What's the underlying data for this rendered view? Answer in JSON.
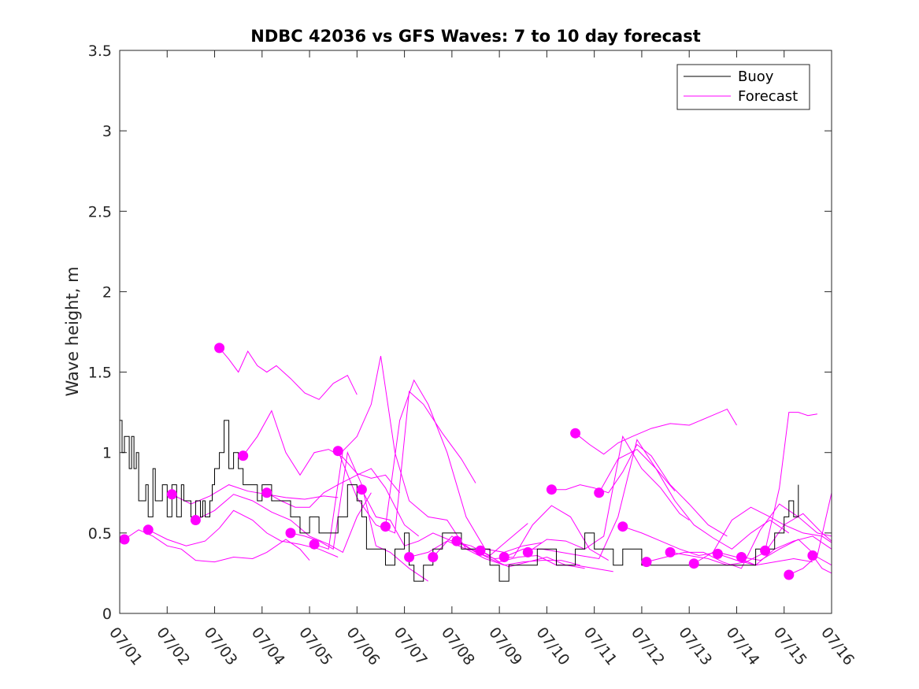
{
  "chart_data": {
    "type": "line",
    "title": "NDBC 42036 vs GFS Waves: 7 to 10 day forecast",
    "xlabel": "",
    "ylabel": "Wave height, m",
    "xlim": [
      1,
      16
    ],
    "ylim": [
      0,
      3.5
    ],
    "x_ticks": [
      1,
      2,
      3,
      4,
      5,
      6,
      7,
      8,
      9,
      10,
      11,
      12,
      13,
      14,
      15,
      16
    ],
    "x_tick_labels": [
      "07/01",
      "07/02",
      "07/03",
      "07/04",
      "07/05",
      "07/06",
      "07/07",
      "07/08",
      "07/09",
      "07/10",
      "07/11",
      "07/12",
      "07/13",
      "07/14",
      "07/15",
      "07/16"
    ],
    "y_ticks": [
      0,
      0.5,
      1,
      1.5,
      2,
      2.5,
      3,
      3.5
    ],
    "y_tick_labels": [
      "0",
      "0.5",
      "1",
      "1.5",
      "2",
      "2.5",
      "3",
      "3.5"
    ],
    "x_unit": "day of July",
    "grid": false,
    "legend_position": "top-right",
    "legend": [
      {
        "label": "Buoy",
        "color": "#000000"
      },
      {
        "label": "Forecast",
        "color": "#ff00ff"
      }
    ],
    "colors": {
      "buoy": "#000000",
      "forecast": "#ff00ff"
    },
    "series": [
      {
        "name": "Buoy",
        "kind": "observed",
        "x": [
          1.0,
          1.05,
          1.1,
          1.2,
          1.25,
          1.3,
          1.35,
          1.4,
          1.5,
          1.55,
          1.6,
          1.7,
          1.75,
          1.85,
          1.9,
          2.0,
          2.1,
          2.2,
          2.3,
          2.35,
          2.4,
          2.5,
          2.6,
          2.7,
          2.75,
          2.8,
          2.9,
          2.95,
          3.0,
          3.1,
          3.2,
          3.3,
          3.4,
          3.5,
          3.6,
          3.7,
          3.8,
          3.9,
          4.0,
          4.2,
          4.4,
          4.6,
          4.8,
          5.0,
          5.2,
          5.4,
          5.6,
          5.8,
          6.0,
          6.1,
          6.2,
          6.4,
          6.6,
          6.7,
          6.8,
          6.9,
          7.0,
          7.1,
          7.2,
          7.4,
          7.6,
          7.8,
          8.0,
          8.2,
          8.4,
          8.6,
          8.8,
          9.0,
          9.2,
          9.4,
          9.6,
          9.8,
          10.0,
          10.2,
          10.4,
          10.6,
          10.8,
          11.0,
          11.2,
          11.4,
          11.6,
          11.8,
          12.0,
          12.2,
          12.4,
          12.6,
          12.8,
          13.0,
          13.2,
          13.4,
          13.6,
          13.8,
          14.0,
          14.2,
          14.4,
          14.6,
          14.8,
          15.0,
          15.1,
          15.2,
          15.3
        ],
        "values": [
          1.2,
          1.0,
          1.1,
          0.9,
          1.1,
          0.9,
          1.0,
          0.7,
          0.7,
          0.8,
          0.6,
          0.9,
          0.7,
          0.7,
          0.8,
          0.6,
          0.8,
          0.6,
          0.8,
          0.7,
          0.7,
          0.6,
          0.7,
          0.6,
          0.7,
          0.6,
          0.7,
          0.8,
          0.9,
          1.0,
          1.2,
          0.9,
          1.0,
          0.9,
          0.8,
          0.8,
          0.8,
          0.7,
          0.8,
          0.7,
          0.7,
          0.6,
          0.5,
          0.6,
          0.5,
          0.5,
          0.6,
          0.8,
          0.7,
          0.6,
          0.4,
          0.4,
          0.3,
          0.3,
          0.4,
          0.4,
          0.5,
          0.3,
          0.2,
          0.3,
          0.4,
          0.5,
          0.5,
          0.4,
          0.4,
          0.4,
          0.3,
          0.2,
          0.3,
          0.3,
          0.3,
          0.4,
          0.4,
          0.3,
          0.3,
          0.4,
          0.5,
          0.4,
          0.4,
          0.3,
          0.4,
          0.4,
          0.3,
          0.3,
          0.3,
          0.3,
          0.3,
          0.3,
          0.3,
          0.3,
          0.3,
          0.3,
          0.3,
          0.3,
          0.4,
          0.4,
          0.5,
          0.6,
          0.7,
          0.6,
          0.8
        ]
      },
      {
        "name": "Forecast",
        "kind": "forecast",
        "runs": [
          {
            "x": [
              1.1,
              1.4,
              1.7,
              2.0,
              2.3,
              2.6,
              3.0,
              3.4,
              3.8,
              4.1,
              4.5,
              4.8,
              5.0
            ],
            "values": [
              0.46,
              0.52,
              0.48,
              0.42,
              0.4,
              0.33,
              0.32,
              0.35,
              0.34,
              0.38,
              0.46,
              0.4,
              0.33
            ]
          },
          {
            "x": [
              1.6,
              2.0,
              2.4,
              2.8,
              3.1,
              3.4,
              3.8,
              4.1,
              4.4,
              4.8,
              5.2,
              5.6
            ],
            "values": [
              0.52,
              0.46,
              0.42,
              0.45,
              0.53,
              0.64,
              0.58,
              0.5,
              0.45,
              0.43,
              0.4,
              0.35
            ]
          },
          {
            "x": [
              2.1,
              2.5,
              2.9,
              3.3,
              3.7,
              4.1,
              4.5,
              4.9,
              5.3,
              5.6
            ],
            "values": [
              0.74,
              0.68,
              0.73,
              0.8,
              0.76,
              0.74,
              0.72,
              0.71,
              0.73,
              0.72
            ]
          },
          {
            "x": [
              2.6,
              3.0,
              3.4,
              3.8,
              4.2,
              4.6,
              5.0,
              5.4,
              5.7,
              6.0,
              6.3
            ],
            "values": [
              0.58,
              0.64,
              0.74,
              0.7,
              0.63,
              0.58,
              0.48,
              0.43,
              0.38,
              0.6,
              0.75
            ]
          },
          {
            "x": [
              3.1,
              3.3,
              3.5,
              3.7,
              3.9,
              4.1,
              4.3,
              4.6,
              4.9,
              5.2,
              5.5,
              5.8,
              6.0
            ],
            "values": [
              1.65,
              1.58,
              1.5,
              1.63,
              1.54,
              1.5,
              1.54,
              1.46,
              1.37,
              1.33,
              1.43,
              1.48,
              1.36
            ]
          },
          {
            "x": [
              3.6,
              3.9,
              4.2,
              4.5,
              4.8,
              5.1,
              5.4,
              5.7,
              6.0,
              6.3,
              6.6,
              6.9
            ],
            "values": [
              0.98,
              1.1,
              1.26,
              1.0,
              0.86,
              1.0,
              1.02,
              0.97,
              0.87,
              0.84,
              0.86,
              0.75
            ]
          },
          {
            "x": [
              4.1,
              4.4,
              4.7,
              5.0,
              5.3,
              5.6,
              6.0,
              6.3,
              6.6,
              7.0,
              7.3
            ],
            "values": [
              0.75,
              0.7,
              0.66,
              0.66,
              0.75,
              0.8,
              0.86,
              0.9,
              0.78,
              0.55,
              0.48
            ]
          },
          {
            "x": [
              4.6,
              4.9,
              5.2,
              5.5,
              5.8,
              6.1,
              6.4,
              6.7,
              7.1,
              7.5
            ],
            "values": [
              0.5,
              0.48,
              0.45,
              0.4,
              1.0,
              0.8,
              0.42,
              0.38,
              0.28,
              0.2
            ]
          },
          {
            "x": [
              5.1,
              5.4,
              5.7,
              6.0,
              6.3,
              6.5,
              6.8,
              7.1,
              7.5,
              7.9,
              8.3,
              8.5
            ],
            "values": [
              0.43,
              0.4,
              1.01,
              1.1,
              1.3,
              1.6,
              1.0,
              0.7,
              0.6,
              0.58,
              0.4,
              0.39
            ]
          },
          {
            "x": [
              5.6,
              6.0,
              6.4,
              6.8,
              7.1,
              7.4,
              7.8,
              8.2,
              8.5
            ],
            "values": [
              1.01,
              0.72,
              0.55,
              0.5,
              1.38,
              1.3,
              1.12,
              0.96,
              0.81
            ]
          },
          {
            "x": [
              6.1,
              6.4,
              6.7,
              7.0,
              7.3,
              7.6,
              8.0,
              8.4,
              8.8,
              9.2,
              9.6
            ],
            "values": [
              0.77,
              0.6,
              0.58,
              0.42,
              0.45,
              0.5,
              0.45,
              0.42,
              0.36,
              0.46,
              0.56
            ]
          },
          {
            "x": [
              6.6,
              6.9,
              7.2,
              7.5,
              7.9,
              8.3,
              8.7,
              9.1,
              9.5,
              9.9
            ],
            "values": [
              0.54,
              1.2,
              1.45,
              1.3,
              1.0,
              0.6,
              0.4,
              0.38,
              0.42,
              0.44
            ]
          },
          {
            "x": [
              7.1,
              7.5,
              7.9,
              8.3,
              8.7,
              9.1,
              9.5,
              9.9,
              10.3,
              10.7
            ],
            "values": [
              0.35,
              0.38,
              0.45,
              0.4,
              0.34,
              0.3,
              0.32,
              0.33,
              0.33,
              0.3
            ]
          },
          {
            "x": [
              7.6,
              8.0,
              8.4,
              8.8,
              9.2,
              9.6,
              10.0,
              10.4,
              10.8
            ],
            "values": [
              0.35,
              0.48,
              0.4,
              0.34,
              0.29,
              0.32,
              0.35,
              0.3,
              0.28
            ]
          },
          {
            "x": [
              8.1,
              8.5,
              8.9,
              9.3,
              9.7,
              10.1,
              10.5,
              10.9,
              11.3
            ],
            "values": [
              0.45,
              0.38,
              0.34,
              0.35,
              0.55,
              0.67,
              0.6,
              0.4,
              0.33
            ]
          },
          {
            "x": [
              8.6,
              9.0,
              9.4,
              9.8,
              10.2,
              10.6,
              11.0,
              11.4
            ],
            "values": [
              0.39,
              0.32,
              0.35,
              0.36,
              0.3,
              0.3,
              0.28,
              0.26
            ]
          },
          {
            "x": [
              9.1,
              9.5,
              9.9,
              10.3,
              10.7,
              11.1,
              11.5,
              11.9,
              12.3,
              12.7
            ],
            "values": [
              0.35,
              0.4,
              0.4,
              0.38,
              0.36,
              0.34,
              0.6,
              1.08,
              0.9,
              0.76
            ]
          },
          {
            "x": [
              9.6,
              10.0,
              10.4,
              10.8,
              11.2,
              11.6,
              12.0,
              12.4,
              12.8,
              13.0
            ],
            "values": [
              0.38,
              0.46,
              0.45,
              0.4,
              0.48,
              1.1,
              0.9,
              0.78,
              0.62,
              0.58
            ]
          },
          {
            "x": [
              10.1,
              10.4,
              10.7,
              11.0,
              11.3,
              11.6,
              11.9,
              12.2,
              12.6,
              13.0,
              13.4,
              13.8
            ],
            "values": [
              0.77,
              0.77,
              0.8,
              0.78,
              0.75,
              0.88,
              1.05,
              0.98,
              0.8,
              0.68,
              0.55,
              0.48
            ]
          },
          {
            "x": [
              10.6,
              10.9,
              11.2,
              11.5,
              11.8,
              12.2,
              12.6,
              13.0,
              13.4,
              13.8,
              14.0
            ],
            "values": [
              1.12,
              1.05,
              0.99,
              1.06,
              1.1,
              1.15,
              1.18,
              1.17,
              1.22,
              1.27,
              1.17
            ]
          },
          {
            "x": [
              11.1,
              11.5,
              11.9,
              12.3,
              12.7,
              13.1,
              13.5,
              13.9,
              14.3,
              14.7,
              15.1
            ],
            "values": [
              0.75,
              0.96,
              1.02,
              0.9,
              0.7,
              0.55,
              0.47,
              0.4,
              0.5,
              0.58,
              0.5
            ]
          },
          {
            "x": [
              11.6,
              12.0,
              12.4,
              12.8,
              13.2,
              13.6,
              14.0,
              14.4,
              14.8,
              15.2,
              15.6
            ],
            "values": [
              0.54,
              0.5,
              0.45,
              0.4,
              0.36,
              0.38,
              0.35,
              0.3,
              0.32,
              0.34,
              0.32
            ]
          },
          {
            "x": [
              12.1,
              12.5,
              12.9,
              13.3,
              13.7,
              14.1,
              14.5,
              14.9,
              15.3,
              15.7,
              16.0
            ],
            "values": [
              0.32,
              0.35,
              0.38,
              0.38,
              0.32,
              0.28,
              0.52,
              0.68,
              0.6,
              0.5,
              0.48
            ]
          },
          {
            "x": [
              12.6,
              13.0,
              13.4,
              13.8,
              14.2,
              14.6,
              15.0,
              15.4,
              15.8,
              16.0
            ],
            "values": [
              0.38,
              0.36,
              0.34,
              0.3,
              0.32,
              0.38,
              0.55,
              0.62,
              0.5,
              0.45
            ]
          },
          {
            "x": [
              13.1,
              13.5,
              13.9,
              14.3,
              14.7,
              15.0,
              15.4,
              15.8,
              16.0
            ],
            "values": [
              0.31,
              0.38,
              0.58,
              0.66,
              0.6,
              0.55,
              0.5,
              0.48,
              0.44
            ]
          },
          {
            "x": [
              13.6,
              14.0,
              14.4,
              14.8,
              15.2,
              15.6,
              16.0
            ],
            "values": [
              0.37,
              0.33,
              0.3,
              0.4,
              0.45,
              0.48,
              0.4
            ]
          },
          {
            "x": [
              14.1,
              14.5,
              14.9,
              15.3,
              15.7,
              16.0
            ],
            "values": [
              0.35,
              0.33,
              0.4,
              0.46,
              0.35,
              0.3
            ]
          },
          {
            "x": [
              14.6,
              14.9,
              15.1,
              15.3,
              15.5,
              15.7
            ],
            "values": [
              0.39,
              0.78,
              1.25,
              1.25,
              1.23,
              1.24
            ]
          },
          {
            "x": [
              15.1,
              15.4,
              15.7,
              16.0
            ],
            "values": [
              0.24,
              0.28,
              0.36,
              0.75
            ]
          },
          {
            "x": [
              15.6,
              15.8,
              16.0
            ],
            "values": [
              0.36,
              0.28,
              0.25
            ]
          }
        ]
      }
    ]
  }
}
